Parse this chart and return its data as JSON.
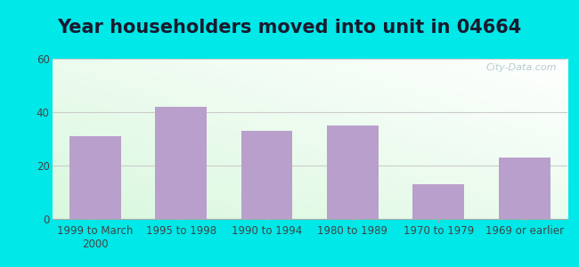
{
  "title": "Year householders moved into unit in 04664",
  "categories": [
    "1999 to March\n2000",
    "1995 to 1998",
    "1990 to 1994",
    "1980 to 1989",
    "1970 to 1979",
    "1969 or earlier"
  ],
  "values": [
    31,
    42,
    33,
    35,
    13,
    23
  ],
  "bar_color": "#b9a0cc",
  "ylim": [
    0,
    60
  ],
  "yticks": [
    0,
    20,
    40,
    60
  ],
  "background_outer": "#00e8e8",
  "grid_color": "#cccccc",
  "title_fontsize": 15,
  "tick_fontsize": 8.5,
  "watermark": "City-Data.com"
}
